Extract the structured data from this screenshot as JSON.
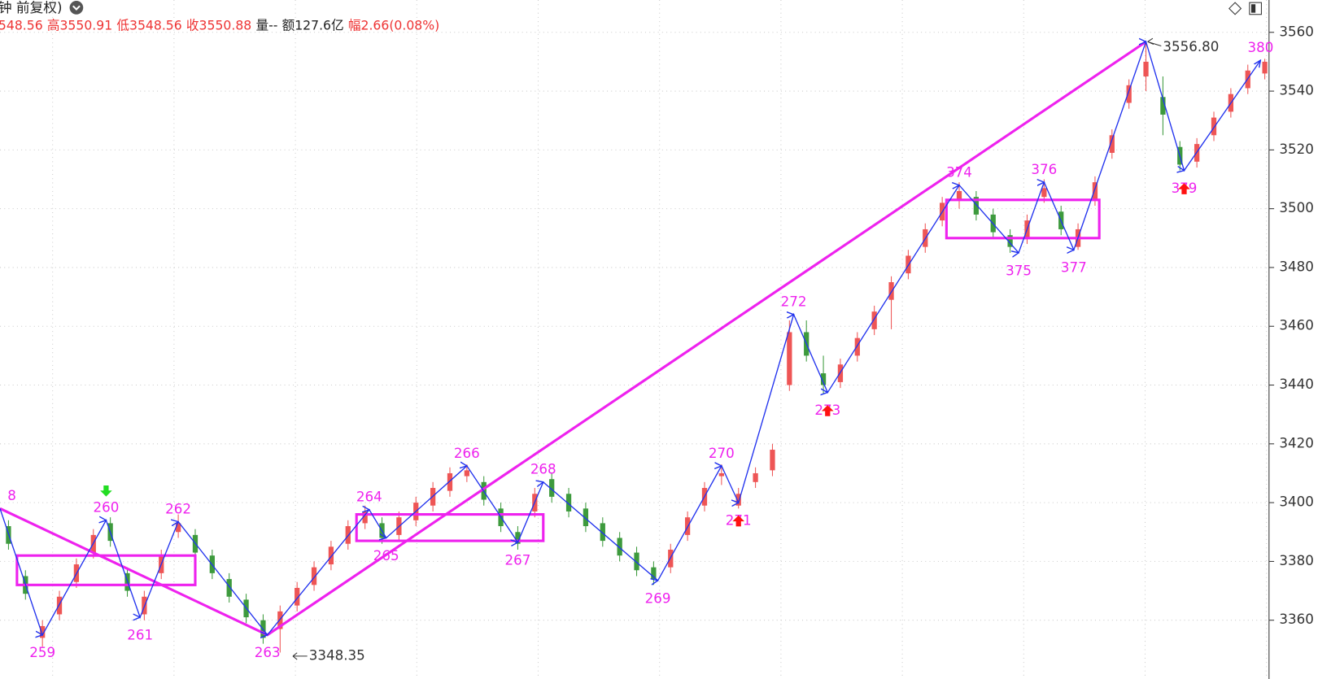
{
  "header": {
    "title": "钟 前复权)",
    "quote": [
      {
        "text": "548.56",
        "color": "#ee3333"
      },
      {
        "text": "高3550.91",
        "color": "#ee3333"
      },
      {
        "text": "低3548.56",
        "color": "#ee3333"
      },
      {
        "text": "收3550.88",
        "color": "#ee3333"
      },
      {
        "text": "量--",
        "color": "#222222"
      },
      {
        "text": "额127.6亿",
        "color": "#222222"
      },
      {
        "text": "幅2.66(0.08%)",
        "color": "#ee3333"
      }
    ]
  },
  "chart_data": {
    "type": "candlestick",
    "xlim": [
      0,
      299
    ],
    "ylim": [
      3340,
      3571
    ],
    "yticks": [
      3360,
      3380,
      3400,
      3420,
      3440,
      3460,
      3480,
      3500,
      3520,
      3540,
      3560
    ],
    "grid": true,
    "up_color": "#ee5555",
    "down_color": "#3d9a3d",
    "candles": [
      [
        2,
        3392,
        3394,
        3384,
        3386
      ],
      [
        6,
        3375,
        3377,
        3367,
        3369
      ],
      [
        10,
        3354,
        3360,
        3351,
        3358
      ],
      [
        14,
        3362,
        3370,
        3360,
        3368
      ],
      [
        18,
        3373,
        3381,
        3371,
        3379
      ],
      [
        22,
        3383,
        3391,
        3381,
        3389
      ],
      [
        26,
        3393,
        3395,
        3385,
        3387
      ],
      [
        30,
        3376,
        3378,
        3368,
        3370
      ],
      [
        34,
        3362,
        3370,
        3360,
        3368
      ],
      [
        38,
        3376,
        3384,
        3374,
        3382
      ],
      [
        42,
        3390,
        3396,
        3388,
        3393
      ],
      [
        46,
        3389,
        3391,
        3381,
        3383
      ],
      [
        50,
        3382,
        3384,
        3374,
        3376
      ],
      [
        54,
        3374,
        3376,
        3366,
        3368
      ],
      [
        58,
        3367,
        3369,
        3359,
        3361
      ],
      [
        62,
        3360,
        3362,
        3352,
        3354
      ],
      [
        66,
        3357,
        3365,
        3349,
        3363
      ],
      [
        70,
        3365,
        3373,
        3363,
        3371
      ],
      [
        74,
        3372,
        3380,
        3370,
        3378
      ],
      [
        78,
        3379,
        3387,
        3377,
        3385
      ],
      [
        82,
        3386,
        3394,
        3384,
        3392
      ],
      [
        86,
        3393,
        3399,
        3391,
        3397
      ],
      [
        90,
        3393,
        3395,
        3386,
        3388
      ],
      [
        94,
        3389,
        3397,
        3387,
        3395
      ],
      [
        98,
        3394,
        3402,
        3392,
        3400
      ],
      [
        102,
        3399,
        3407,
        3397,
        3405
      ],
      [
        106,
        3404,
        3412,
        3402,
        3410
      ],
      [
        110,
        3409,
        3413,
        3407,
        3411
      ],
      [
        114,
        3407,
        3409,
        3399,
        3401
      ],
      [
        118,
        3398,
        3400,
        3390,
        3392
      ],
      [
        122,
        3390,
        3392,
        3384,
        3386
      ],
      [
        126,
        3397,
        3405,
        3395,
        3403
      ],
      [
        130,
        3408,
        3410,
        3400,
        3402
      ],
      [
        134,
        3403,
        3405,
        3395,
        3397
      ],
      [
        138,
        3398,
        3400,
        3390,
        3392
      ],
      [
        142,
        3393,
        3395,
        3385,
        3387
      ],
      [
        146,
        3388,
        3390,
        3380,
        3382
      ],
      [
        150,
        3383,
        3385,
        3375,
        3377
      ],
      [
        154,
        3378,
        3380,
        3372,
        3374
      ],
      [
        158,
        3378,
        3386,
        3376,
        3384
      ],
      [
        162,
        3389,
        3397,
        3387,
        3395
      ],
      [
        166,
        3399,
        3407,
        3397,
        3405
      ],
      [
        170,
        3409,
        3413,
        3406,
        3410
      ],
      [
        174,
        3399,
        3405,
        3398,
        3403
      ],
      [
        178,
        3407,
        3412,
        3405,
        3410
      ],
      [
        182,
        3411,
        3420,
        3409,
        3418
      ],
      [
        186,
        3440,
        3462,
        3438,
        3458
      ],
      [
        190,
        3458,
        3462,
        3448,
        3450
      ],
      [
        194,
        3444,
        3450,
        3437,
        3440
      ],
      [
        198,
        3441,
        3449,
        3439,
        3447
      ],
      [
        202,
        3450,
        3458,
        3448,
        3456
      ],
      [
        206,
        3459,
        3467,
        3457,
        3465
      ],
      [
        210,
        3469,
        3477,
        3459,
        3475
      ],
      [
        214,
        3478,
        3486,
        3476,
        3484
      ],
      [
        218,
        3487,
        3495,
        3485,
        3493
      ],
      [
        222,
        3496,
        3504,
        3494,
        3502
      ],
      [
        226,
        3503,
        3509,
        3500,
        3506
      ],
      [
        230,
        3504,
        3506,
        3496,
        3498
      ],
      [
        234,
        3498,
        3500,
        3490,
        3492
      ],
      [
        238,
        3491,
        3493,
        3485,
        3487
      ],
      [
        242,
        3490,
        3498,
        3488,
        3496
      ],
      [
        246,
        3504,
        3510,
        3502,
        3507
      ],
      [
        250,
        3499,
        3501,
        3491,
        3493
      ],
      [
        254,
        3487,
        3495,
        3486,
        3493
      ],
      [
        258,
        3503,
        3511,
        3501,
        3509
      ],
      [
        262,
        3519,
        3527,
        3517,
        3525
      ],
      [
        266,
        3536,
        3544,
        3534,
        3542
      ],
      [
        270,
        3545,
        3556.8,
        3540,
        3550
      ],
      [
        274,
        3538,
        3545,
        3525,
        3532
      ],
      [
        278,
        3521,
        3523,
        3513,
        3515
      ],
      [
        282,
        3516,
        3524,
        3514,
        3522
      ],
      [
        286,
        3525,
        3533,
        3523,
        3531
      ],
      [
        290,
        3533,
        3541,
        3531,
        3539
      ],
      [
        294,
        3541,
        3549,
        3539,
        3547
      ],
      [
        298,
        3546,
        3551,
        3544,
        3550
      ]
    ],
    "pivots": {
      "color": "#2233ee",
      "label_color": "#ee22ee",
      "x": [
        0,
        10,
        25,
        33,
        42,
        63,
        87,
        91,
        110,
        122,
        128,
        155,
        170,
        174,
        187,
        195,
        226,
        240,
        246,
        253,
        270,
        279,
        297
      ],
      "values": [
        3398,
        3355,
        3394,
        3361,
        3393.5,
        3355,
        3397.6,
        3388,
        3412.5,
        3386.5,
        3407,
        3373.5,
        3412.5,
        3400,
        3464,
        3437.5,
        3508,
        3485,
        3509,
        3486,
        3556.8,
        3513,
        3550.5
      ],
      "labels": [
        "8",
        "259",
        "260",
        "261",
        "262",
        "263",
        "264",
        "265",
        "266",
        "267",
        "268",
        "269",
        "270",
        "271",
        "272",
        "273",
        "374",
        "375",
        "376",
        "377",
        null,
        "379",
        "380"
      ]
    },
    "major_line": {
      "color": "#ee22ee",
      "x": [
        0,
        63,
        270
      ],
      "values": [
        3398,
        3355,
        3556.8
      ]
    },
    "boxes": [
      {
        "x": [
          4,
          46
        ],
        "y": [
          3372,
          3382
        ]
      },
      {
        "x": [
          84,
          128
        ],
        "y": [
          3387,
          3396
        ]
      },
      {
        "x": [
          223,
          259
        ],
        "y": [
          3490,
          3503
        ]
      }
    ],
    "signals": [
      {
        "x": 25,
        "direction": "down",
        "color": "#22dd22"
      },
      {
        "x": 174,
        "direction": "up",
        "color": "#ff1111"
      },
      {
        "x": 195,
        "direction": "up",
        "color": "#ff1111"
      },
      {
        "x": 279,
        "direction": "up",
        "color": "#ff1111"
      }
    ],
    "high_mark": {
      "x": 270,
      "value": 3556.8,
      "label": "3556.80"
    },
    "low_mark": {
      "x": 69,
      "value": 3348.35
    }
  }
}
